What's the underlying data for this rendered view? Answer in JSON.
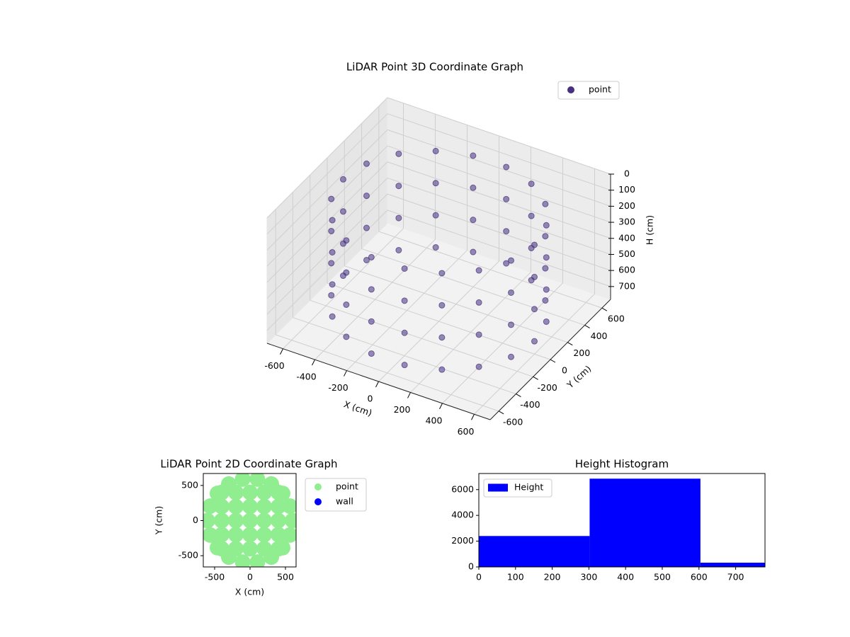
{
  "chart_data": [
    {
      "type": "scatter3d",
      "title": "LiDAR Point 3D Coordinate Graph",
      "xlabel": "X (cm)",
      "ylabel": "Y (cm)",
      "zlabel": "H (cm)",
      "legend": "upper right",
      "series": [
        {
          "name": "point",
          "color": "#46307f",
          "x": [
            600,
            564,
            460,
            300,
            104,
            -104,
            -300,
            -460,
            -564,
            -600,
            -564,
            -460,
            -300,
            -104,
            104,
            300,
            460,
            564,
            600,
            564,
            460,
            300,
            104,
            -104,
            -300,
            -460,
            -564,
            -600,
            -564,
            -460,
            -300,
            -104,
            104,
            300,
            460,
            564,
            600,
            564,
            460,
            300,
            104,
            -104,
            -300,
            -460,
            -564,
            -600,
            -564,
            -460,
            -300,
            -104,
            104,
            300,
            460,
            564,
            600,
            564,
            460,
            300,
            104,
            -104,
            -300,
            -460,
            -564,
            -600,
            -564,
            -460,
            -300,
            -104,
            104,
            300,
            460,
            564
          ],
          "y": [
            0,
            205,
            386,
            520,
            591,
            591,
            520,
            386,
            205,
            0,
            -205,
            -386,
            -520,
            -591,
            -591,
            -520,
            -386,
            -205,
            0,
            205,
            386,
            520,
            591,
            591,
            520,
            386,
            205,
            0,
            -205,
            -386,
            -520,
            -591,
            -591,
            -520,
            -386,
            -205,
            0,
            205,
            386,
            520,
            591,
            591,
            520,
            386,
            205,
            0,
            -205,
            -386,
            -520,
            -591,
            -591,
            -520,
            -386,
            -205,
            0,
            205,
            386,
            520,
            591,
            591,
            520,
            386,
            205,
            0,
            -205,
            -386,
            -520,
            -591,
            -591,
            -520,
            -386,
            -205
          ],
          "z": [
            100,
            100,
            100,
            100,
            100,
            100,
            100,
            100,
            100,
            100,
            100,
            100,
            100,
            100,
            100,
            100,
            100,
            100,
            300,
            300,
            300,
            300,
            300,
            300,
            300,
            300,
            300,
            300,
            300,
            300,
            300,
            300,
            300,
            300,
            300,
            300,
            500,
            500,
            500,
            500,
            500,
            500,
            500,
            500,
            500,
            500,
            500,
            500,
            500,
            500,
            500,
            500,
            500,
            500,
            700,
            700,
            700,
            700,
            700,
            700,
            700,
            700,
            700,
            700,
            700,
            700,
            700,
            700,
            700,
            700,
            700,
            700
          ]
        }
      ],
      "xlim": [
        -700,
        700
      ],
      "ylim": [
        -700,
        700
      ],
      "zlim": [
        0,
        780
      ],
      "z_inverted": true,
      "xticks": [
        -600,
        -400,
        -200,
        0,
        200,
        400,
        600
      ],
      "yticks": [
        -600,
        -400,
        -200,
        0,
        200,
        400,
        600
      ],
      "zticks": [
        0,
        100,
        200,
        300,
        400,
        500,
        600,
        700
      ],
      "grid": true
    },
    {
      "type": "scatter",
      "title": "LiDAR Point 2D Coordinate Graph",
      "xlabel": "X (cm)",
      "ylabel": "Y (cm)",
      "legend": "outside right",
      "series": [
        {
          "name": "point",
          "color": "#90ee90",
          "x": [
            600,
            564,
            460,
            300,
            104,
            -104,
            -300,
            -460,
            -564,
            -600,
            -564,
            -460,
            -300,
            -104,
            104,
            300,
            460,
            564,
            -400,
            -200,
            0,
            200,
            400,
            -400,
            -200,
            0,
            200,
            400,
            -400,
            -200,
            0,
            200,
            400,
            -400,
            -200,
            0,
            200,
            400,
            -400,
            -200,
            0,
            200,
            400
          ],
          "y": [
            0,
            205,
            386,
            520,
            591,
            591,
            520,
            386,
            205,
            0,
            -205,
            -386,
            -520,
            -591,
            -591,
            -520,
            -386,
            -205,
            -400,
            -400,
            -400,
            -400,
            -400,
            -200,
            -200,
            -200,
            -200,
            -200,
            0,
            0,
            0,
            0,
            0,
            200,
            200,
            200,
            200,
            200,
            400,
            400,
            400,
            400,
            400
          ]
        },
        {
          "name": "wall",
          "color": "#0000ff",
          "x": [],
          "y": []
        }
      ],
      "xlim": [
        -660,
        650
      ],
      "ylim": [
        -660,
        670
      ],
      "xticks": [
        -500,
        0,
        500
      ],
      "yticks": [
        -500,
        0,
        500
      ]
    },
    {
      "type": "histogram",
      "title": "Height Histogram",
      "legend": "upper left",
      "bins": [
        0,
        302,
        604,
        780
      ],
      "series": [
        {
          "name": "Height",
          "color": "#0000ff",
          "values": [
            2400,
            6850,
            330
          ]
        }
      ],
      "xlim": [
        0,
        780
      ],
      "ylim": [
        0,
        7250
      ],
      "xticks": [
        0,
        100,
        200,
        300,
        400,
        500,
        600,
        700
      ],
      "yticks": [
        0,
        2000,
        4000,
        6000
      ]
    }
  ]
}
